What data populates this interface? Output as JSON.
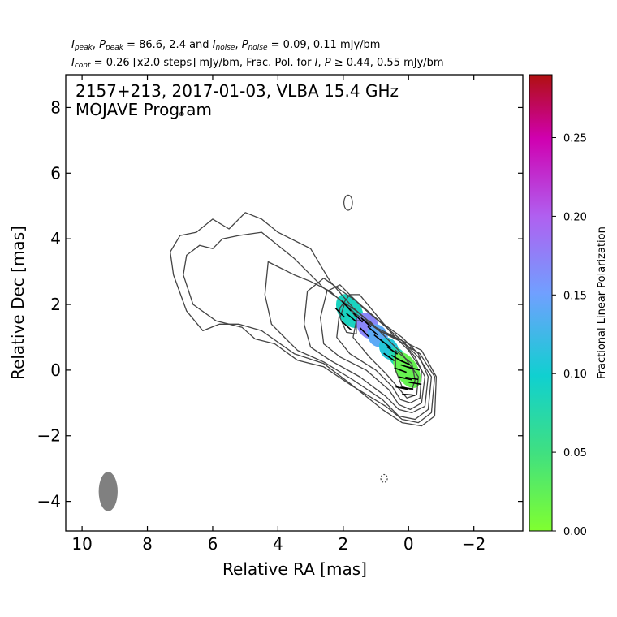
{
  "header": {
    "line1": {
      "i_peak": "I",
      "i_peak_sub": "peak",
      "p_peak": "P",
      "p_peak_sub": "peak",
      "peak_values": " = 86.6, 2.4 and ",
      "i_noise": "I",
      "i_noise_sub": "noise",
      "p_noise": "P",
      "p_noise_sub": "noise",
      "noise_values": " = 0.09, 0.11 mJy/bm"
    },
    "line2": {
      "i_cont": "I",
      "i_cont_sub": "cont",
      "cont_text": " = 0.26 [x2.0 steps] mJy/bm, Frac. Pol. for ",
      "i": "I",
      "p": "P",
      "geq": " ≥ ",
      "thresholds": "0.44, 0.55 mJy/bm"
    }
  },
  "chart_data": {
    "type": "heatmap",
    "title": "2157+213, 2017-01-03, VLBA 15.4 GHz",
    "subtitle": "MOJAVE Program",
    "xlabel": "Relative RA [mas]",
    "ylabel": "Relative Dec [mas]",
    "xlim": [
      10.5,
      -3.5
    ],
    "ylim": [
      -4.9,
      9.0
    ],
    "xticks": [
      10,
      8,
      6,
      4,
      2,
      0,
      -2
    ],
    "yticks": [
      -4,
      -2,
      0,
      2,
      4,
      6,
      8
    ],
    "colorbar": {
      "label": "Fractional Linear Polarization",
      "range": [
        0.0,
        0.29
      ],
      "ticks": [
        "0.00",
        "0.05",
        "0.10",
        "0.15",
        "0.20",
        "0.25"
      ]
    },
    "beam": {
      "ra": 9.2,
      "dec": -3.7,
      "major_mas": 1.2,
      "minor_mas": 0.58,
      "color": "#808080"
    },
    "contour_color": "#444444",
    "contours": [
      [
        [
          6.5,
          4.2
        ],
        [
          6.0,
          4.6
        ],
        [
          5.5,
          4.3
        ],
        [
          5.0,
          4.8
        ],
        [
          4.5,
          4.6
        ],
        [
          4.0,
          4.2
        ],
        [
          3.0,
          3.7
        ],
        [
          2.4,
          2.7
        ],
        [
          1.7,
          1.9
        ],
        [
          1.0,
          1.3
        ],
        [
          0.4,
          1.0
        ],
        [
          -0.4,
          0.6
        ],
        [
          -0.85,
          -0.2
        ],
        [
          -0.8,
          -1.4
        ],
        [
          -0.4,
          -1.7
        ],
        [
          0.2,
          -1.6
        ],
        [
          0.8,
          -1.2
        ],
        [
          1.8,
          -0.4
        ],
        [
          2.6,
          0.2
        ],
        [
          3.5,
          0.5
        ],
        [
          4.5,
          1.2
        ],
        [
          5.2,
          1.4
        ],
        [
          5.8,
          1.4
        ],
        [
          6.3,
          1.2
        ],
        [
          6.8,
          1.8
        ],
        [
          7.2,
          2.9
        ],
        [
          7.3,
          3.6
        ],
        [
          7.0,
          4.1
        ],
        [
          6.5,
          4.2
        ]
      ],
      [
        [
          6.0,
          3.7
        ],
        [
          5.7,
          4.0
        ],
        [
          5.2,
          4.1
        ],
        [
          4.5,
          4.2
        ],
        [
          3.5,
          3.4
        ],
        [
          2.6,
          2.5
        ],
        [
          1.6,
          1.8
        ],
        [
          0.9,
          1.2
        ],
        [
          0.3,
          0.9
        ],
        [
          -0.35,
          0.5
        ],
        [
          -0.8,
          -0.2
        ],
        [
          -0.7,
          -1.3
        ],
        [
          -0.3,
          -1.6
        ],
        [
          0.2,
          -1.5
        ],
        [
          0.7,
          -1.1
        ],
        [
          1.7,
          -0.5
        ],
        [
          2.6,
          0.1
        ],
        [
          3.4,
          0.3
        ],
        [
          4.1,
          0.8
        ],
        [
          4.7,
          0.95
        ],
        [
          5.1,
          1.3
        ],
        [
          5.9,
          1.5
        ],
        [
          6.6,
          2.0
        ],
        [
          6.9,
          2.9
        ],
        [
          6.8,
          3.5
        ],
        [
          6.4,
          3.8
        ],
        [
          6.0,
          3.7
        ]
      ],
      [
        [
          4.3,
          3.3
        ],
        [
          3.5,
          2.9
        ],
        [
          3.0,
          2.7
        ],
        [
          2.4,
          2.4
        ],
        [
          1.6,
          1.7
        ],
        [
          0.9,
          1.2
        ],
        [
          0.2,
          0.9
        ],
        [
          -0.3,
          0.4
        ],
        [
          -0.7,
          -0.2
        ],
        [
          -0.6,
          -1.2
        ],
        [
          -0.2,
          -1.5
        ],
        [
          0.3,
          -1.4
        ],
        [
          0.8,
          -0.9
        ],
        [
          1.7,
          -0.3
        ],
        [
          2.6,
          0.25
        ],
        [
          3.4,
          0.6
        ],
        [
          3.8,
          1.0
        ],
        [
          4.2,
          1.4
        ],
        [
          4.4,
          2.3
        ],
        [
          4.3,
          3.3
        ]
      ],
      [
        [
          2.6,
          2.8
        ],
        [
          1.6,
          2.1
        ],
        [
          0.9,
          1.5
        ],
        [
          0.2,
          1.0
        ],
        [
          -0.3,
          0.5
        ],
        [
          -0.6,
          -0.2
        ],
        [
          -0.5,
          -1.1
        ],
        [
          -0.1,
          -1.3
        ],
        [
          0.3,
          -1.2
        ],
        [
          0.7,
          -0.8
        ],
        [
          1.5,
          -0.2
        ],
        [
          2.4,
          0.3
        ],
        [
          3.0,
          0.7
        ],
        [
          3.2,
          1.4
        ],
        [
          3.1,
          2.4
        ],
        [
          2.6,
          2.8
        ]
      ],
      [
        [
          2.1,
          2.6
        ],
        [
          1.4,
          1.9
        ],
        [
          0.8,
          1.4
        ],
        [
          0.2,
          0.9
        ],
        [
          -0.2,
          0.4
        ],
        [
          -0.5,
          -0.2
        ],
        [
          -0.4,
          -1.0
        ],
        [
          -0.05,
          -1.2
        ],
        [
          0.3,
          -1.05
        ],
        [
          0.6,
          -0.6
        ],
        [
          1.3,
          0.0
        ],
        [
          2.1,
          0.4
        ],
        [
          2.6,
          0.8
        ],
        [
          2.7,
          1.6
        ],
        [
          2.5,
          2.4
        ],
        [
          2.1,
          2.6
        ]
      ],
      [
        [
          1.5,
          2.3
        ],
        [
          1.0,
          1.7
        ],
        [
          0.5,
          1.1
        ],
        [
          0.0,
          0.6
        ],
        [
          -0.4,
          0.0
        ],
        [
          -0.35,
          -0.85
        ],
        [
          -0.05,
          -1.0
        ],
        [
          0.25,
          -0.9
        ],
        [
          0.5,
          -0.5
        ],
        [
          1.0,
          0.0
        ],
        [
          1.8,
          0.5
        ],
        [
          2.2,
          1.0
        ],
        [
          2.1,
          1.9
        ],
        [
          1.8,
          2.3
        ],
        [
          1.5,
          2.3
        ]
      ],
      [
        [
          1.2,
          1.5
        ],
        [
          0.7,
          1.0
        ],
        [
          0.2,
          0.5
        ],
        [
          -0.3,
          -0.2
        ],
        [
          -0.25,
          -0.75
        ],
        [
          0.05,
          -0.85
        ],
        [
          0.35,
          -0.5
        ],
        [
          0.7,
          -0.1
        ],
        [
          1.2,
          0.4
        ],
        [
          1.7,
          1.0
        ],
        [
          1.6,
          1.5
        ],
        [
          1.2,
          1.5
        ]
      ],
      [
        [
          0.4,
          0.6
        ],
        [
          -0.1,
          0.2
        ],
        [
          -0.2,
          -0.3
        ],
        [
          -0.1,
          -0.6
        ],
        [
          0.2,
          -0.5
        ],
        [
          0.4,
          0.0
        ],
        [
          0.4,
          0.6
        ]
      ],
      [
        [
          1.95,
          2.05
        ],
        [
          1.6,
          1.6
        ],
        [
          1.6,
          1.1
        ],
        [
          1.9,
          1.15
        ],
        [
          2.1,
          1.6
        ],
        [
          1.95,
          2.05
        ]
      ]
    ],
    "small_contours": [
      {
        "ra": 1.85,
        "dec": 5.1,
        "rx": 0.13,
        "ry": 0.23,
        "dashed": false
      },
      {
        "ra": 0.75,
        "dec": -3.3,
        "rx": 0.1,
        "ry": 0.12,
        "dashed": true
      },
      {
        "ra": 6.95,
        "dec": 7.8,
        "rx": 0.06,
        "ry": 0.05,
        "dashed": false
      }
    ],
    "pol_regions": [
      {
        "ra": 1.8,
        "dec": 1.8,
        "rx": 0.36,
        "ry": 0.56,
        "frac": 0.09
      },
      {
        "ra": 1.25,
        "dec": 1.35,
        "rx": 0.32,
        "ry": 0.42,
        "frac": 0.17
      },
      {
        "ra": 0.95,
        "dec": 1.05,
        "rx": 0.3,
        "ry": 0.36,
        "frac": 0.14
      },
      {
        "ra": 0.6,
        "dec": 0.65,
        "rx": 0.28,
        "ry": 0.36,
        "frac": 0.11
      },
      {
        "ra": 0.35,
        "dec": 0.4,
        "rx": 0.24,
        "ry": 0.3,
        "frac": 0.08
      },
      {
        "ra": 0.05,
        "dec": 0.0,
        "rx": 0.34,
        "ry": 0.6,
        "frac": 0.02
      }
    ],
    "evpa_ticks": [
      [
        2.1,
        1.75,
        45
      ],
      [
        1.9,
        1.95,
        48
      ],
      [
        1.75,
        1.6,
        40
      ],
      [
        1.9,
        1.35,
        42
      ],
      [
        1.55,
        1.6,
        45
      ],
      [
        1.3,
        1.45,
        42
      ],
      [
        1.1,
        1.2,
        40
      ],
      [
        1.35,
        1.15,
        45
      ],
      [
        0.9,
        0.95,
        38
      ],
      [
        0.7,
        0.8,
        38
      ],
      [
        0.5,
        0.6,
        35
      ],
      [
        0.35,
        0.35,
        30
      ],
      [
        0.6,
        0.4,
        35
      ],
      [
        0.15,
        0.25,
        25
      ],
      [
        0.25,
        0.0,
        20
      ],
      [
        0.05,
        0.1,
        18
      ],
      [
        -0.15,
        0.05,
        15
      ],
      [
        0.1,
        -0.25,
        12
      ],
      [
        -0.1,
        -0.25,
        10
      ],
      [
        0.05,
        -0.55,
        8
      ],
      [
        -0.2,
        -0.4,
        10
      ],
      [
        0.0,
        -0.75,
        5
      ],
      [
        0.2,
        -0.55,
        12
      ]
    ]
  }
}
